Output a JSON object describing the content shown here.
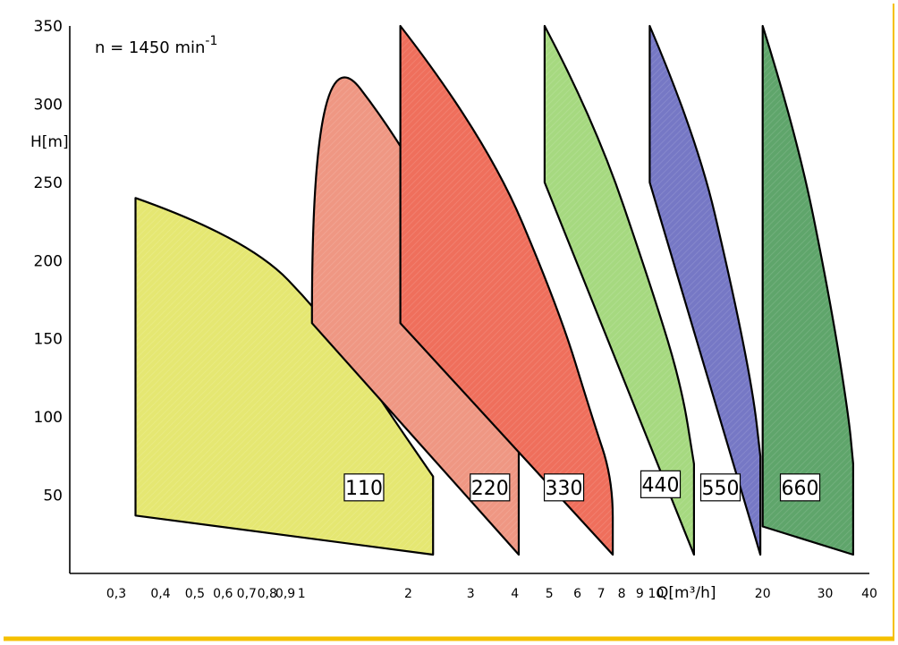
{
  "chart_data": {
    "type": "area",
    "annotation": "n = 1450 min",
    "annotation_superscript": "-1",
    "ylabel": "H[m]",
    "xlabel": "Q[m³/h]",
    "x_scale": "log",
    "xlim": [
      0.3,
      40
    ],
    "ylim": [
      0,
      350
    ],
    "x_ticks": [
      0.3,
      0.4,
      0.5,
      0.6,
      0.7,
      0.8,
      0.9,
      1,
      2,
      3,
      4,
      5,
      6,
      7,
      8,
      9,
      10,
      20,
      30,
      40
    ],
    "x_tick_labels": [
      "0,3",
      "0,4",
      "0,5",
      "0,6",
      "0,7",
      "0,8",
      "0,9",
      "1",
      "2",
      "3",
      "4",
      "5",
      "6",
      "7",
      "8",
      "9",
      "10",
      "20",
      "30",
      "40"
    ],
    "y_ticks": [
      50,
      100,
      150,
      200,
      250,
      300,
      350
    ],
    "y_tick_labels": [
      "50",
      "100",
      "150",
      "200",
      "250",
      "300",
      "350"
    ],
    "grid": false,
    "frame_color": "#f5c000",
    "series": [
      {
        "name": "110",
        "color": "#e5e772",
        "label_at": {
          "x": 1.5,
          "y": 55
        },
        "upper": [
          [
            0.34,
            240
          ],
          [
            0.7,
            215
          ],
          [
            1.2,
            160
          ],
          [
            1.8,
            100
          ],
          [
            2.35,
            62
          ]
        ],
        "lower": [
          [
            2.35,
            12
          ],
          [
            0.34,
            37
          ]
        ]
      },
      {
        "name": "220",
        "color": "#ef9783",
        "label_at": {
          "x": 3.4,
          "y": 55
        },
        "upper": [
          [
            1.07,
            165
          ],
          [
            1.07,
            350
          ],
          [
            2.0,
            270
          ],
          [
            3.2,
            175
          ],
          [
            4.1,
            100
          ]
        ],
        "lower": [
          [
            4.1,
            12
          ],
          [
            1.07,
            160
          ]
        ]
      },
      {
        "name": "330",
        "color": "#ef6f5c",
        "label_at": {
          "x": 5.5,
          "y": 55
        },
        "upper": [
          [
            1.9,
            350
          ],
          [
            3.3,
            280
          ],
          [
            5.3,
            170
          ],
          [
            6.6,
            100
          ],
          [
            7.55,
            60
          ],
          [
            7.55,
            12
          ]
        ],
        "lower": [
          [
            7.55,
            12
          ],
          [
            1.9,
            160
          ]
        ]
      },
      {
        "name": "440",
        "color": "#a6d980",
        "label_at": {
          "x": 10.3,
          "y": 57
        },
        "upper": [
          [
            4.85,
            350
          ],
          [
            6.7,
            290
          ],
          [
            9.8,
            180
          ],
          [
            11.8,
            120
          ],
          [
            12.8,
            70
          ]
        ],
        "lower": [
          [
            12.8,
            12
          ],
          [
            4.85,
            250
          ]
        ]
      },
      {
        "name": "550",
        "color": "#7678c5",
        "label_at": {
          "x": 15.2,
          "y": 55
        },
        "upper": [
          [
            9.6,
            350
          ],
          [
            13,
            280
          ],
          [
            16.5,
            180
          ],
          [
            18.8,
            115
          ],
          [
            19.7,
            75
          ]
        ],
        "lower": [
          [
            19.7,
            12
          ],
          [
            9.6,
            250
          ]
        ]
      },
      {
        "name": "660",
        "color": "#5fa56b",
        "label_at": {
          "x": 25.5,
          "y": 55
        },
        "upper": [
          [
            20,
            350
          ],
          [
            25,
            280
          ],
          [
            31,
            175
          ],
          [
            35,
            100
          ],
          [
            36,
            70
          ]
        ],
        "lower": [
          [
            36,
            12
          ],
          [
            20,
            30
          ]
        ]
      }
    ]
  }
}
